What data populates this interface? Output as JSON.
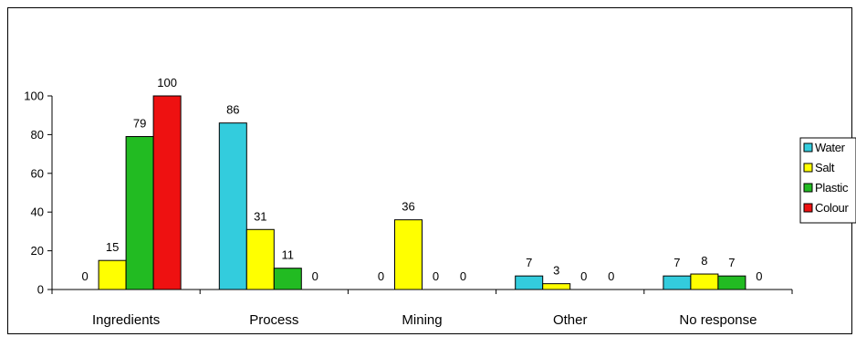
{
  "chart_data": {
    "type": "bar",
    "title": "",
    "xlabel": "",
    "ylabel": "",
    "categories": [
      "Ingredients",
      "Process",
      "Mining",
      "Other",
      "No response"
    ],
    "series": [
      {
        "name": "Water",
        "color": "#33ccdd",
        "values": [
          0,
          86,
          0,
          7,
          7
        ]
      },
      {
        "name": "Salt",
        "color": "#ffff00",
        "values": [
          15,
          31,
          36,
          3,
          8
        ]
      },
      {
        "name": "Plastic",
        "color": "#22bb22",
        "values": [
          79,
          11,
          0,
          0,
          7
        ]
      },
      {
        "name": "Colour",
        "color": "#ee1111",
        "values": [
          100,
          0,
          0,
          0,
          0
        ]
      }
    ],
    "ylim": [
      0,
      100
    ],
    "yticks": [
      "0",
      "20",
      "40",
      "60",
      "80",
      "100"
    ],
    "grid": false,
    "legend_position": "right"
  }
}
